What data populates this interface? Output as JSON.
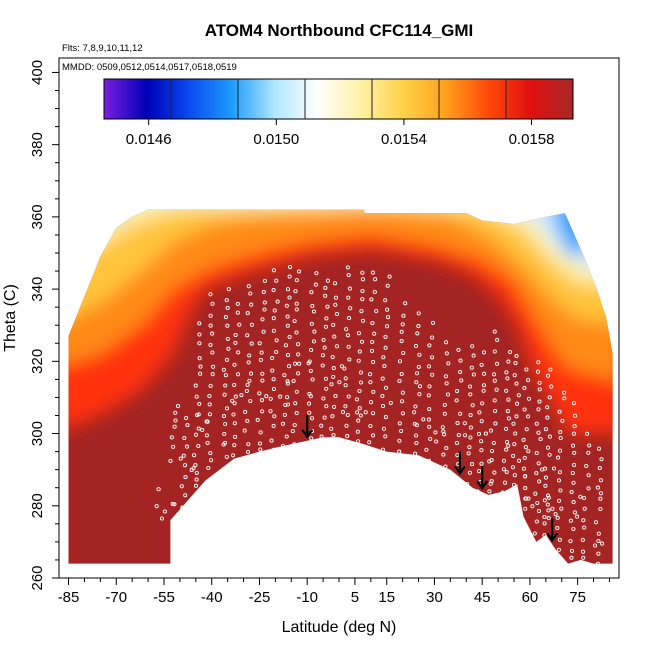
{
  "chart_data": {
    "type": "heatmap",
    "title": "ATOM4 Northbound CFC114_GMI",
    "info_lines": [
      "Flts: 7,8,9,10,11,12",
      "MMDD: 0509,0512,0514,0517,0518,0519"
    ],
    "xlabel": "Latitude (deg N)",
    "ylabel": "Theta (C)",
    "xlim": [
      -88,
      88
    ],
    "ylim": [
      260,
      404
    ],
    "x_ticks": [
      -85,
      -70,
      -55,
      -40,
      -25,
      -10,
      5,
      15,
      30,
      45,
      60,
      75
    ],
    "y_ticks": [
      260,
      280,
      300,
      320,
      340,
      360,
      380,
      400
    ],
    "colorbar": {
      "range": [
        0.01446,
        0.01593
      ],
      "ticks": [
        0.0146,
        0.015,
        0.0154,
        0.0158
      ],
      "tick_labels": [
        "0.0146",
        "0.0150",
        "0.0154",
        "0.0158"
      ],
      "colors": [
        "#7b1fe0",
        "#0000b8",
        "#0a4af0",
        "#1e9bff",
        "#aee6ff",
        "#ffffff",
        "#fff2a8",
        "#ffd24a",
        "#ffa21c",
        "#ff4a0a",
        "#e01010",
        "#a82828"
      ]
    },
    "field": {
      "bottom_boundary": [
        [
          -85,
          264
        ],
        [
          -53,
          264
        ],
        [
          -53,
          276
        ],
        [
          -50,
          279
        ],
        [
          -42,
          287
        ],
        [
          -33,
          293
        ],
        [
          -25,
          295
        ],
        [
          -18,
          296.5
        ],
        [
          -10,
          298
        ],
        [
          -5,
          299
        ],
        [
          0,
          299
        ],
        [
          8,
          297
        ],
        [
          15,
          295
        ],
        [
          25,
          294
        ],
        [
          35,
          290
        ],
        [
          42,
          285
        ],
        [
          47,
          283
        ],
        [
          52,
          284
        ],
        [
          56,
          286
        ],
        [
          58,
          277
        ],
        [
          62,
          270
        ],
        [
          65,
          272
        ],
        [
          68,
          268
        ],
        [
          72,
          264
        ],
        [
          76,
          265
        ],
        [
          80,
          264
        ],
        [
          84,
          264
        ],
        [
          86,
          264
        ]
      ],
      "top_boundary": [
        [
          -85,
          327
        ],
        [
          -80,
          338
        ],
        [
          -75,
          349
        ],
        [
          -70,
          357
        ],
        [
          -65,
          360
        ],
        [
          -60,
          362
        ],
        [
          8,
          362
        ],
        [
          8,
          361
        ],
        [
          40,
          361
        ],
        [
          45,
          359
        ],
        [
          55,
          358
        ],
        [
          65,
          360
        ],
        [
          71,
          361
        ],
        [
          77,
          349
        ],
        [
          81,
          340
        ],
        [
          84,
          332
        ],
        [
          86,
          322
        ]
      ]
    },
    "flight_markers": [
      -10,
      38,
      45,
      67
    ]
  }
}
